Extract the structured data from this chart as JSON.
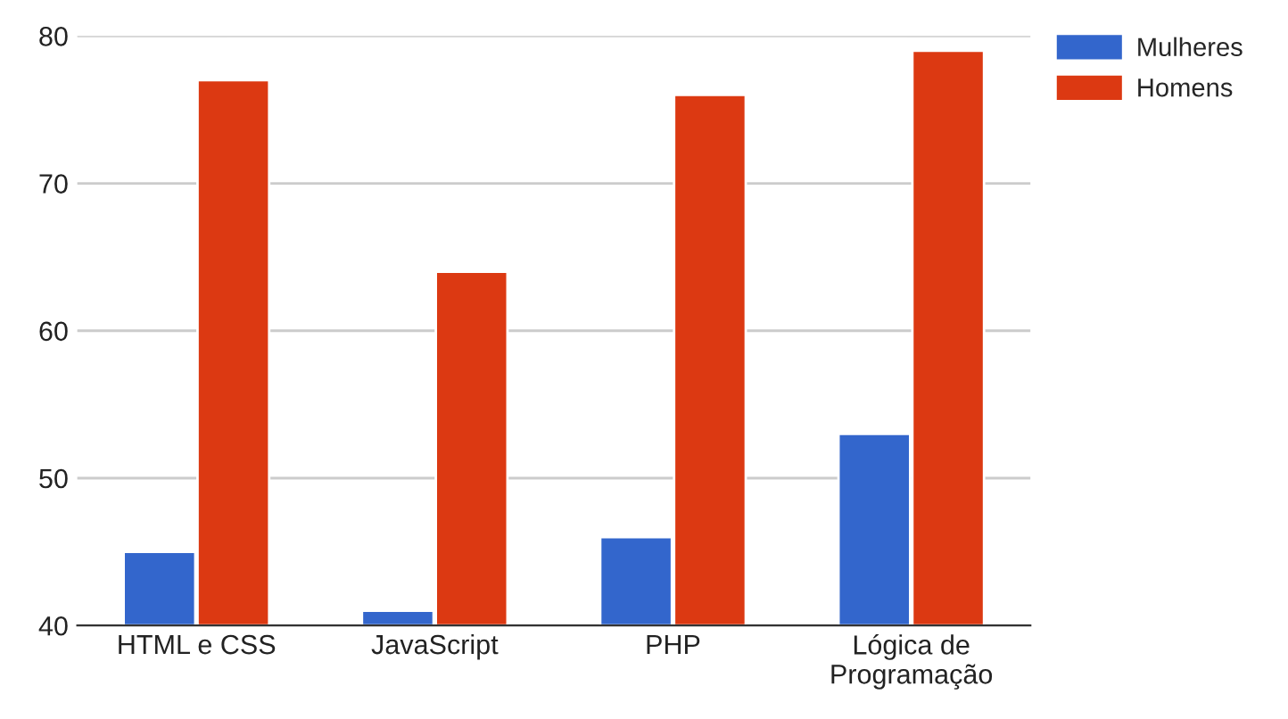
{
  "chart_data": {
    "type": "bar",
    "categories": [
      "HTML e CSS",
      "JavaScript",
      "PHP",
      "Lógica de\nProgramação"
    ],
    "series": [
      {
        "name": "Mulheres",
        "color": "#3366cc",
        "values": [
          45,
          41,
          46,
          53
        ]
      },
      {
        "name": "Homens",
        "color": "#dc3912",
        "values": [
          77,
          64,
          76,
          79
        ]
      }
    ],
    "ylim": [
      40,
      80
    ],
    "yticks": [
      40,
      50,
      60,
      70,
      80
    ],
    "grid": "y",
    "legend": "top right"
  }
}
